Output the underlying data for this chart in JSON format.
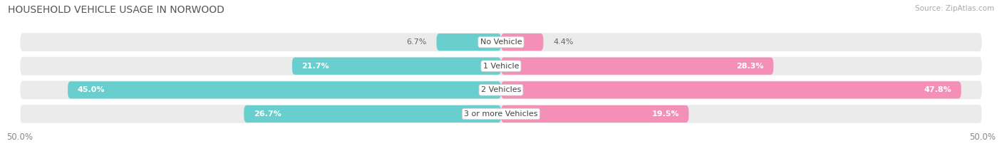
{
  "title": "HOUSEHOLD VEHICLE USAGE IN NORWOOD",
  "source": "Source: ZipAtlas.com",
  "categories": [
    "No Vehicle",
    "1 Vehicle",
    "2 Vehicles",
    "3 or more Vehicles"
  ],
  "owner_values": [
    6.7,
    21.7,
    45.0,
    26.7
  ],
  "renter_values": [
    4.4,
    28.3,
    47.8,
    19.5
  ],
  "owner_color": "#68cece",
  "renter_color": "#f490b8",
  "bar_bg_color": "#ebebeb",
  "row_bg_color": "#f5f5f5",
  "label_bg_color": "#ffffff",
  "max_val": 50.0,
  "title_fontsize": 10,
  "axis_fontsize": 8.5,
  "bar_label_fontsize": 8,
  "category_fontsize": 8
}
